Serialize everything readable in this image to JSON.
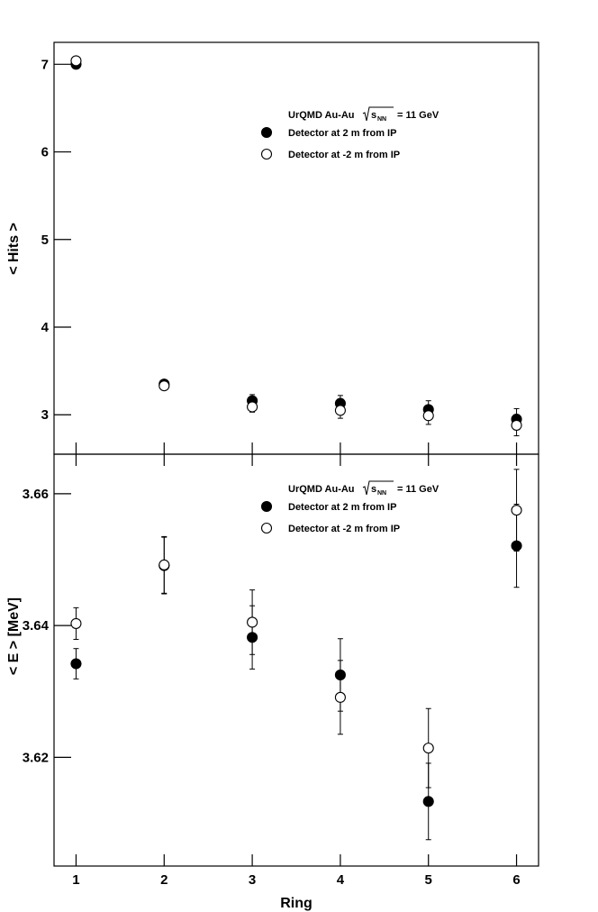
{
  "chart_data": [
    {
      "type": "scatter",
      "ylabel": "< Hits >",
      "xlabel": "",
      "xlim": [
        0.75,
        6.25
      ],
      "ylim": [
        2.55,
        7.25
      ],
      "x_ticks": [
        1,
        2,
        3,
        4,
        5,
        6
      ],
      "y_ticks": [
        3,
        4,
        5,
        6,
        7
      ],
      "y_tick_labels": [
        "3",
        "4",
        "5",
        "6",
        "7"
      ],
      "legend": {
        "title_prefix": "UrQMD Au-Au",
        "title_sym": "s",
        "title_sub": "NN",
        "title_suffix": "= 11 GeV",
        "position": "upper-right"
      },
      "series": [
        {
          "name": "Detector at 2 m from IP",
          "marker": "filled-circle",
          "color": "#000000",
          "x": [
            1,
            2,
            3,
            4,
            5,
            6
          ],
          "y": [
            7.0,
            3.35,
            3.16,
            3.13,
            3.06,
            2.95
          ],
          "err": [
            0.0,
            0.02,
            0.07,
            0.09,
            0.1,
            0.12
          ]
        },
        {
          "name": "Detector at -2 m from IP",
          "marker": "open-circle",
          "color": "#000000",
          "x": [
            1,
            2,
            3,
            4,
            5,
            6
          ],
          "y": [
            7.04,
            3.33,
            3.09,
            3.05,
            2.99,
            2.88
          ],
          "err": [
            0.0,
            0.02,
            0.06,
            0.09,
            0.1,
            0.12
          ]
        }
      ]
    },
    {
      "type": "scatter",
      "ylabel": "< E > [MeV]",
      "xlabel": "Ring",
      "xlim": [
        0.75,
        6.25
      ],
      "ylim": [
        3.6035,
        3.666
      ],
      "x_ticks": [
        1,
        2,
        3,
        4,
        5,
        6
      ],
      "x_tick_labels": [
        "1",
        "2",
        "3",
        "4",
        "5",
        "6"
      ],
      "y_ticks": [
        3.62,
        3.64,
        3.66
      ],
      "y_tick_labels": [
        "3.62",
        "3.64",
        "3.66"
      ],
      "legend": {
        "title_prefix": "UrQMD Au-Au",
        "title_sym": "s",
        "title_sub": "NN",
        "title_suffix": "= 11 GeV",
        "position": "upper-right"
      },
      "series": [
        {
          "name": "Detector at 2 m from IP",
          "marker": "filled-circle",
          "color": "#000000",
          "x": [
            1,
            2,
            3,
            4,
            5,
            6
          ],
          "y": [
            3.6342,
            3.6491,
            3.6382,
            3.6325,
            3.6133,
            3.6521
          ],
          "err": [
            0.0023,
            0.0043,
            0.0048,
            0.0055,
            0.0058,
            0.0063
          ]
        },
        {
          "name": "Detector at -2 m from IP",
          "marker": "open-circle",
          "color": "#000000",
          "x": [
            1,
            2,
            3,
            4,
            5,
            6
          ],
          "y": [
            3.6403,
            3.6492,
            3.6405,
            3.6291,
            3.6214,
            3.6575
          ],
          "err": [
            0.0024,
            0.0043,
            0.0049,
            0.0056,
            0.006,
            0.0062
          ]
        }
      ]
    }
  ]
}
